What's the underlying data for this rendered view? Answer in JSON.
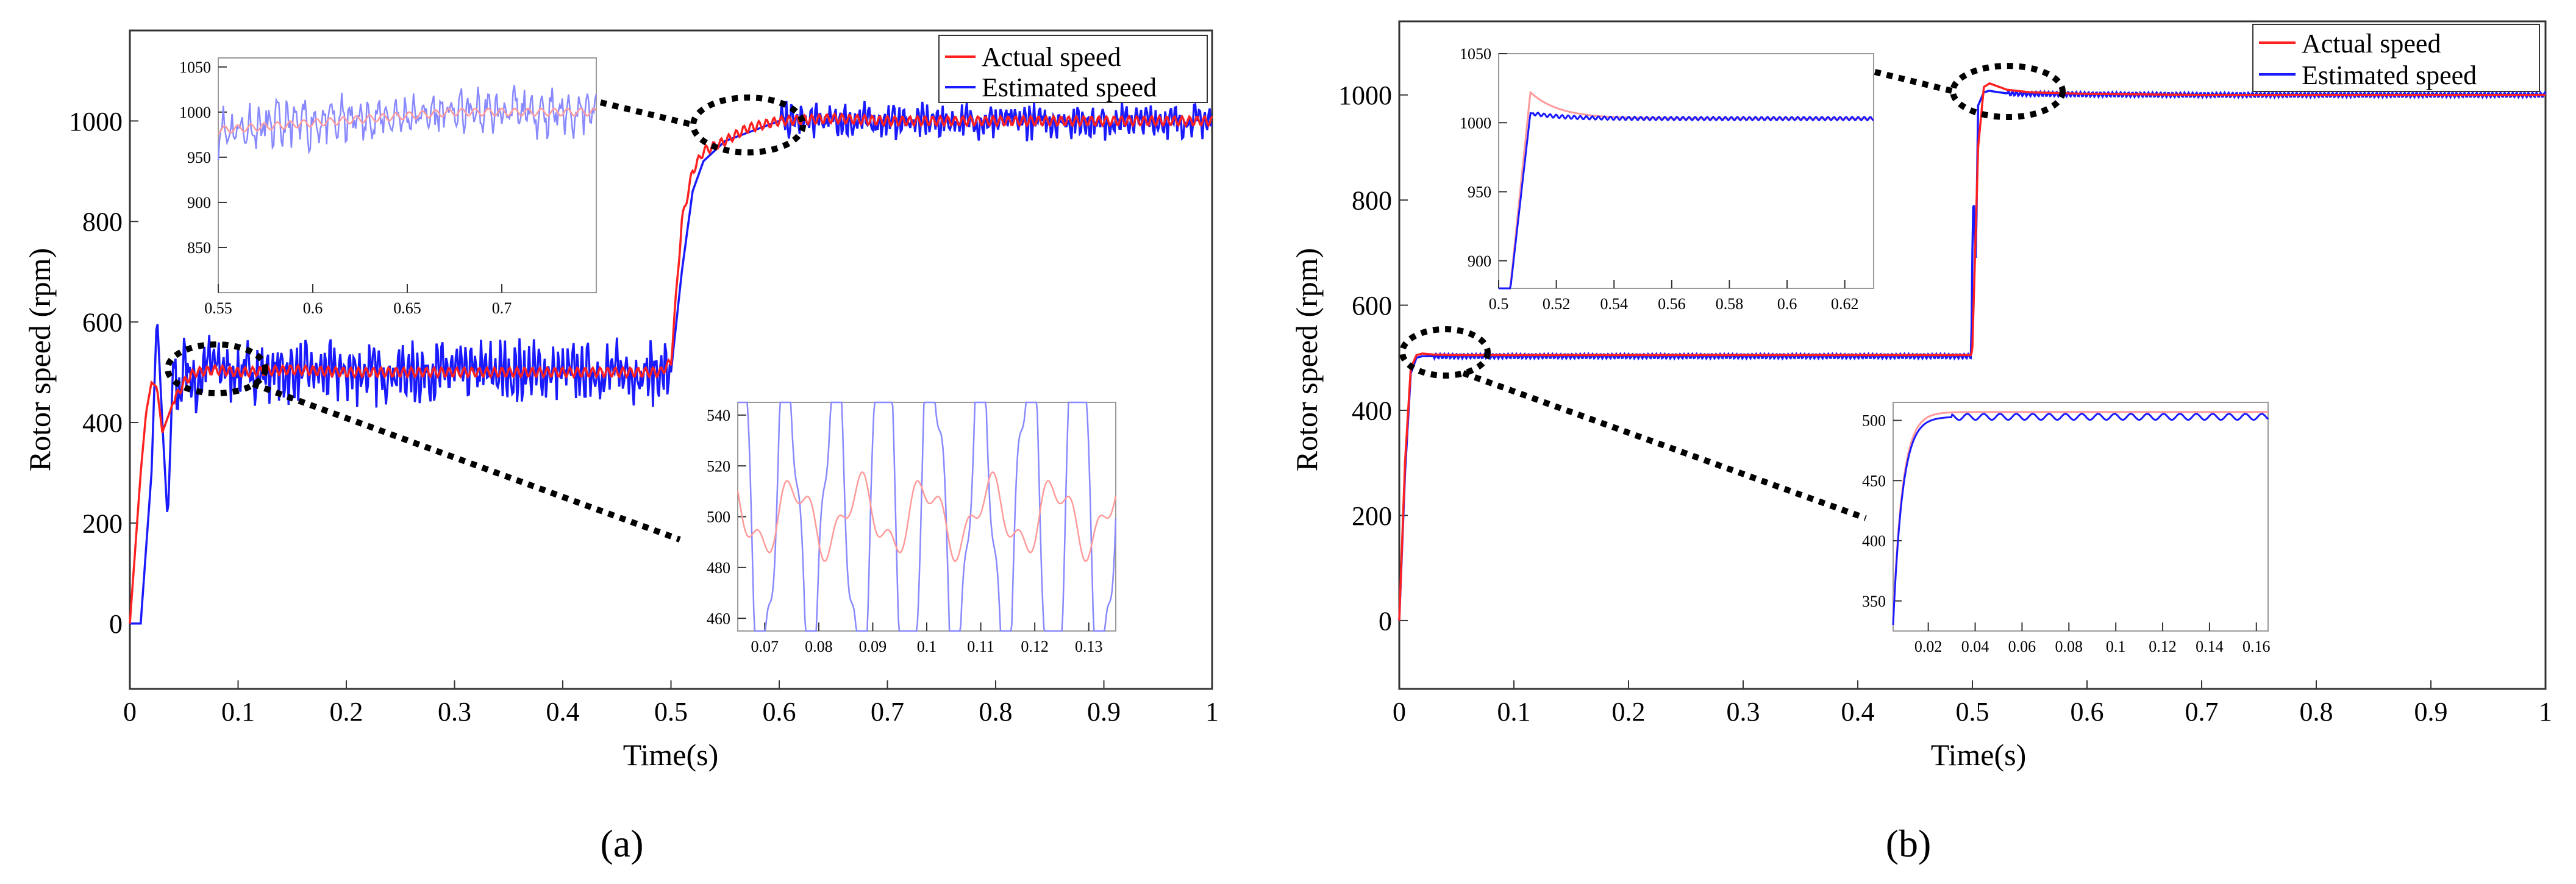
{
  "colors": {
    "actual": "#ff2020",
    "estimated": "#1a1aff",
    "axis": "#333333",
    "zoom_marker": "#000000"
  },
  "panel_labels": [
    "(a)",
    "(b)"
  ],
  "chart_data": [
    {
      "type": "line",
      "panel": "(a)",
      "xlabel": "Time(s)",
      "ylabel": "Rotor speed (rpm)",
      "xlim": [
        0,
        1
      ],
      "ylim": [
        -130,
        1180
      ],
      "xticks": [
        0,
        0.1,
        0.2,
        0.3,
        0.4,
        0.5,
        0.6,
        0.7,
        0.8,
        0.9,
        1
      ],
      "xtick_labels": [
        "0",
        "0.1",
        "0.2",
        "0.3",
        "0.4",
        "0.5",
        "0.6",
        "0.7",
        "0.8",
        "0.9",
        "1"
      ],
      "yticks": [
        0,
        200,
        400,
        600,
        800,
        1000
      ],
      "ytick_labels": [
        "0",
        "200",
        "400",
        "600",
        "800",
        "1000"
      ],
      "legend": {
        "position": "top-right",
        "entries": [
          "Actual speed",
          "Estimated speed"
        ]
      },
      "series": [
        {
          "name": "Actual speed",
          "x": [
            0,
            0.005,
            0.01,
            0.015,
            0.02,
            0.025,
            0.03,
            0.04,
            0.05,
            0.06,
            0.08,
            0.1,
            0.15,
            0.2,
            0.3,
            0.4,
            0.49,
            0.5,
            0.51,
            0.52,
            0.53,
            0.55,
            0.57,
            0.6,
            0.65,
            0.7,
            0.8,
            0.9,
            1.0
          ],
          "values": [
            0,
            150,
            300,
            420,
            480,
            470,
            380,
            440,
            480,
            500,
            505,
            500,
            505,
            500,
            500,
            500,
            500,
            520,
            800,
            900,
            940,
            960,
            985,
            1000,
            1005,
            1000,
            1000,
            1000,
            1000
          ]
        },
        {
          "name": "Estimated speed",
          "x": [
            0,
            0.01,
            0.015,
            0.02,
            0.025,
            0.03,
            0.035,
            0.04,
            0.045,
            0.05,
            0.06,
            0.07,
            0.1,
            0.2,
            0.3,
            0.4,
            0.49,
            0.5,
            0.51,
            0.52,
            0.53,
            0.55,
            0.6,
            0.7,
            0.8,
            0.9,
            1.0
          ],
          "values": [
            0,
            0,
            150,
            300,
            620,
            400,
            200,
            520,
            420,
            540,
            460,
            520,
            500,
            500,
            500,
            500,
            500,
            500,
            700,
            860,
            920,
            960,
            1000,
            1000,
            1000,
            1000,
            1000
          ],
          "noise_amplitude": 60,
          "noise_amplitude_after_step": 35
        }
      ],
      "insets": [
        {
          "name": "inset-steady-high",
          "xlim": [
            0.55,
            0.75
          ],
          "ylim": [
            800,
            1060
          ],
          "xticks": [
            0.55,
            0.6,
            0.65,
            0.7
          ],
          "xtick_labels": [
            "0.55",
            "0.6",
            "0.65",
            "0.7"
          ],
          "yticks": [
            850,
            900,
            950,
            1000,
            1050
          ],
          "ytick_labels": [
            "850",
            "900",
            "950",
            "1000",
            "1050"
          ],
          "actual_level": 1000,
          "actual_start": 980,
          "estimated_amplitude": 30
        },
        {
          "name": "inset-steady-low",
          "xlim": [
            0.065,
            0.135
          ],
          "ylim": [
            455,
            545
          ],
          "xticks": [
            0.07,
            0.08,
            0.09,
            0.1,
            0.11,
            0.12,
            0.13
          ],
          "xtick_labels": [
            "0.07",
            "0.08",
            "0.09",
            "0.1",
            "0.11",
            "0.12",
            "0.13"
          ],
          "yticks": [
            460,
            480,
            500,
            520,
            540
          ],
          "ytick_labels": [
            "460",
            "480",
            "500",
            "520",
            "540"
          ],
          "actual_level": 500,
          "actual_amplitude": 12,
          "estimated_amplitude": 70
        }
      ]
    },
    {
      "type": "line",
      "panel": "(b)",
      "xlabel": "Time(s)",
      "ylabel": "Rotor speed (rpm)",
      "xlim": [
        0,
        1
      ],
      "ylim": [
        -130,
        1140
      ],
      "xticks": [
        0,
        0.1,
        0.2,
        0.3,
        0.4,
        0.5,
        0.6,
        0.7,
        0.8,
        0.9,
        1
      ],
      "xtick_labels": [
        "0",
        "0.1",
        "0.2",
        "0.3",
        "0.4",
        "0.5",
        "0.6",
        "0.7",
        "0.8",
        "0.9",
        "1"
      ],
      "yticks": [
        0,
        200,
        400,
        600,
        800,
        1000
      ],
      "ytick_labels": [
        "0",
        "200",
        "400",
        "600",
        "800",
        "1000"
      ],
      "legend": {
        "position": "top-right",
        "entries": [
          "Actual speed",
          "Estimated speed"
        ]
      },
      "series": [
        {
          "name": "Actual speed",
          "x": [
            0,
            0.005,
            0.01,
            0.015,
            0.02,
            0.03,
            0.05,
            0.1,
            0.2,
            0.3,
            0.4,
            0.499,
            0.5,
            0.505,
            0.51,
            0.515,
            0.52,
            0.53,
            0.55,
            0.6,
            0.7,
            0.8,
            0.9,
            1.0
          ],
          "values": [
            0,
            300,
            480,
            505,
            508,
            506,
            505,
            505,
            505,
            505,
            505,
            505,
            520,
            900,
            1015,
            1022,
            1018,
            1010,
            1005,
            1002,
            1000,
            1000,
            1000,
            1000
          ]
        },
        {
          "name": "Estimated speed",
          "x": [
            0,
            0.005,
            0.01,
            0.015,
            0.02,
            0.03,
            0.05,
            0.1,
            0.2,
            0.3,
            0.4,
            0.499,
            0.5,
            0.501,
            0.503,
            0.505,
            0.51,
            0.515,
            0.52,
            0.53,
            0.55,
            0.6,
            0.7,
            0.8,
            0.9,
            1.0
          ],
          "values": [
            0,
            280,
            470,
            500,
            503,
            503,
            503,
            503,
            503,
            503,
            503,
            503,
            700,
            820,
            680,
            980,
            1005,
            1008,
            1006,
            1003,
            1002,
            1001,
            1000,
            1000,
            1000,
            1000
          ],
          "ripple_amplitude": 4
        }
      ],
      "insets": [
        {
          "name": "inset-step-high",
          "xlim": [
            0.5,
            0.63
          ],
          "ylim": [
            880,
            1050
          ],
          "xticks": [
            0.5,
            0.52,
            0.54,
            0.56,
            0.58,
            0.6,
            0.62
          ],
          "xtick_labels": [
            "0.5",
            "0.52",
            "0.54",
            "0.56",
            "0.58",
            "0.6",
            "0.62"
          ],
          "yticks": [
            900,
            950,
            1000,
            1050
          ],
          "ytick_labels": [
            "900",
            "950",
            "1000",
            "1050"
          ],
          "actual_peak": 1022,
          "estimated_peak": 1007,
          "final": 1003
        },
        {
          "name": "inset-startup",
          "xlim": [
            0.005,
            0.165
          ],
          "ylim": [
            325,
            515
          ],
          "xticks": [
            0.02,
            0.04,
            0.06,
            0.08,
            0.1,
            0.12,
            0.14,
            0.16
          ],
          "xtick_labels": [
            "0.02",
            "0.04",
            "0.06",
            "0.08",
            "0.1",
            "0.12",
            "0.14",
            "0.16"
          ],
          "yticks": [
            350,
            400,
            450,
            500
          ],
          "ytick_labels": [
            "350",
            "400",
            "450",
            "500"
          ],
          "final": 503
        }
      ]
    }
  ]
}
